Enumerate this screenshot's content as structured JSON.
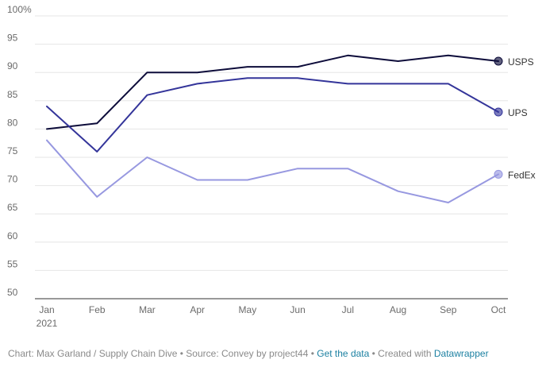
{
  "chart_data": {
    "type": "line",
    "categories": [
      "Jan",
      "Feb",
      "Mar",
      "Apr",
      "May",
      "Jun",
      "Jul",
      "Aug",
      "Sep",
      "Oct"
    ],
    "year_label": "2021",
    "ylim": [
      50,
      100
    ],
    "yticks": [
      50,
      55,
      60,
      65,
      70,
      75,
      80,
      85,
      90,
      95,
      100
    ],
    "ytick_labels": [
      "50",
      "55",
      "60",
      "65",
      "70",
      "75",
      "80",
      "85",
      "90",
      "95",
      "100%"
    ],
    "grid": true,
    "legend": "direct labels at line ends",
    "series": [
      {
        "name": "USPS",
        "color": "#0d0c3a",
        "values": [
          80,
          81,
          90,
          90,
          91,
          91,
          93,
          92,
          93,
          92
        ]
      },
      {
        "name": "UPS",
        "color": "#34359a",
        "values": [
          84,
          76,
          86,
          88,
          89,
          89,
          88,
          88,
          88,
          83
        ]
      },
      {
        "name": "FedEx",
        "color": "#9798e0",
        "values": [
          78,
          68,
          75,
          71,
          71,
          73,
          73,
          69,
          67,
          72
        ]
      }
    ]
  },
  "footer": {
    "credit": "Chart: Max Garland / Supply Chain Dive • Source: Convey by project44 • ",
    "get_data_link": "Get the data",
    "created_with": " • Created with ",
    "datawrapper_link": "Datawrapper"
  }
}
